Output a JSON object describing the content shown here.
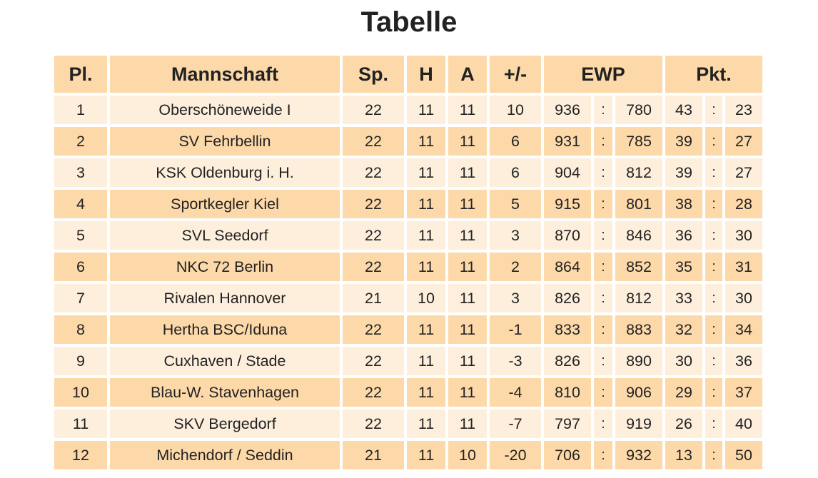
{
  "title": "Tabelle",
  "headers": {
    "place": "Pl.",
    "team": "Mannschaft",
    "games": "Sp.",
    "home": "H",
    "away": "A",
    "diff": "+/-",
    "ewp": "EWP",
    "points": "Pkt."
  },
  "separator": ":",
  "colors": {
    "header_bg": "#fdd9a9",
    "row_light": "#fdefdc",
    "row_dark": "#fdd9a9"
  },
  "rows": [
    {
      "place": "1",
      "team": "Oberschöneweide I",
      "games": "22",
      "home": "11",
      "away": "11",
      "diff": "10",
      "ewp_for": "936",
      "ewp_against": "780",
      "pts_for": "43",
      "pts_against": "23"
    },
    {
      "place": "2",
      "team": "SV Fehrbellin",
      "games": "22",
      "home": "11",
      "away": "11",
      "diff": "6",
      "ewp_for": "931",
      "ewp_against": "785",
      "pts_for": "39",
      "pts_against": "27"
    },
    {
      "place": "3",
      "team": "KSK Oldenburg i. H.",
      "games": "22",
      "home": "11",
      "away": "11",
      "diff": "6",
      "ewp_for": "904",
      "ewp_against": "812",
      "pts_for": "39",
      "pts_against": "27"
    },
    {
      "place": "4",
      "team": "Sportkegler Kiel",
      "games": "22",
      "home": "11",
      "away": "11",
      "diff": "5",
      "ewp_for": "915",
      "ewp_against": "801",
      "pts_for": "38",
      "pts_against": "28"
    },
    {
      "place": "5",
      "team": "SVL Seedorf",
      "games": "22",
      "home": "11",
      "away": "11",
      "diff": "3",
      "ewp_for": "870",
      "ewp_against": "846",
      "pts_for": "36",
      "pts_against": "30"
    },
    {
      "place": "6",
      "team": "NKC 72 Berlin",
      "games": "22",
      "home": "11",
      "away": "11",
      "diff": "2",
      "ewp_for": "864",
      "ewp_against": "852",
      "pts_for": "35",
      "pts_against": "31"
    },
    {
      "place": "7",
      "team": "Rivalen Hannover",
      "games": "21",
      "home": "10",
      "away": "11",
      "diff": "3",
      "ewp_for": "826",
      "ewp_against": "812",
      "pts_for": "33",
      "pts_against": "30"
    },
    {
      "place": "8",
      "team": "Hertha BSC/Iduna",
      "games": "22",
      "home": "11",
      "away": "11",
      "diff": "-1",
      "ewp_for": "833",
      "ewp_against": "883",
      "pts_for": "32",
      "pts_against": "34"
    },
    {
      "place": "9",
      "team": "Cuxhaven / Stade",
      "games": "22",
      "home": "11",
      "away": "11",
      "diff": "-3",
      "ewp_for": "826",
      "ewp_against": "890",
      "pts_for": "30",
      "pts_against": "36"
    },
    {
      "place": "10",
      "team": "Blau-W. Stavenhagen",
      "games": "22",
      "home": "11",
      "away": "11",
      "diff": "-4",
      "ewp_for": "810",
      "ewp_against": "906",
      "pts_for": "29",
      "pts_against": "37"
    },
    {
      "place": "11",
      "team": "SKV Bergedorf",
      "games": "22",
      "home": "11",
      "away": "11",
      "diff": "-7",
      "ewp_for": "797",
      "ewp_against": "919",
      "pts_for": "26",
      "pts_against": "40"
    },
    {
      "place": "12",
      "team": "Michendorf / Seddin",
      "games": "21",
      "home": "11",
      "away": "10",
      "diff": "-20",
      "ewp_for": "706",
      "ewp_against": "932",
      "pts_for": "13",
      "pts_against": "50"
    }
  ]
}
